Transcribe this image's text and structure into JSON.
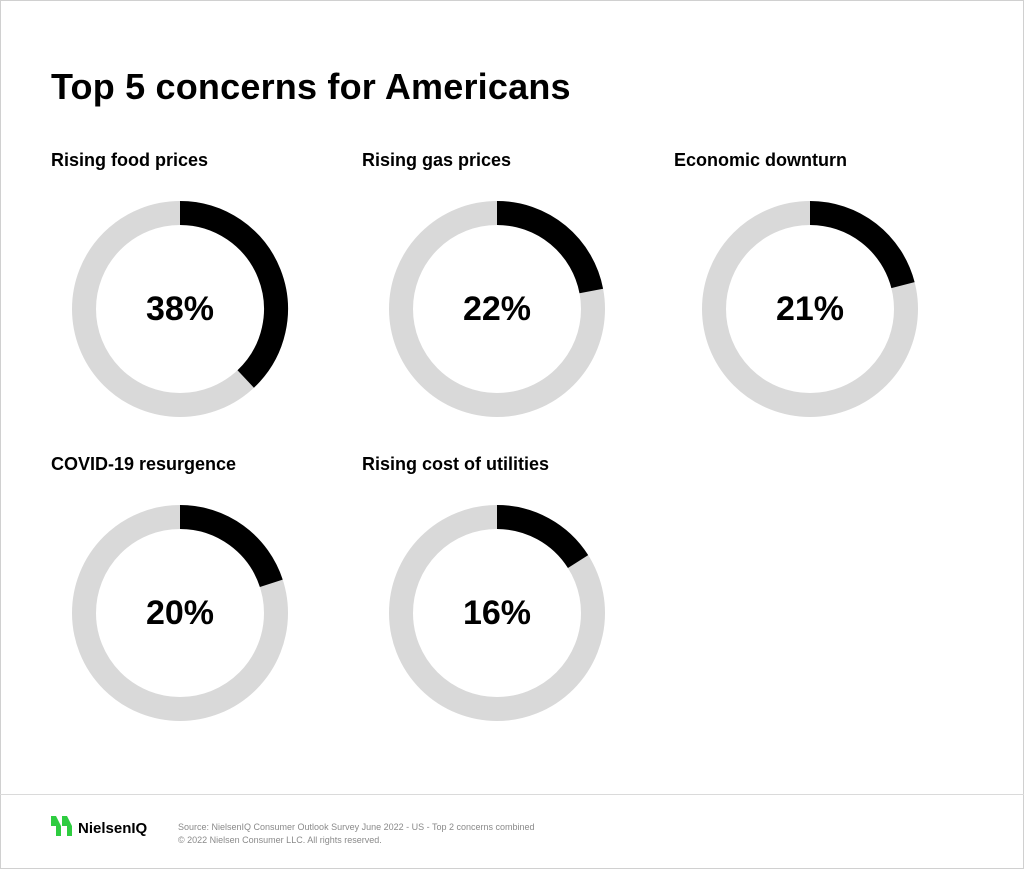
{
  "title": "Top 5 concerns for Americans",
  "chart_data": [
    {
      "type": "pie",
      "title": "Rising food prices",
      "values": [
        38
      ],
      "label": "38%",
      "max": 100
    },
    {
      "type": "pie",
      "title": "Rising gas prices",
      "values": [
        22
      ],
      "label": "22%",
      "max": 100
    },
    {
      "type": "pie",
      "title": "Economic downturn",
      "values": [
        21
      ],
      "label": "21%",
      "max": 100
    },
    {
      "type": "pie",
      "title": "COVID-19 resurgence",
      "values": [
        20
      ],
      "label": "20%",
      "max": 100
    },
    {
      "type": "pie",
      "title": "Rising cost of utilities",
      "values": [
        16
      ],
      "label": "16%",
      "max": 100
    }
  ],
  "colors": {
    "filled": "#000000",
    "track": "#d9d9d9",
    "logo_green": "#2ecc40"
  },
  "footer": {
    "brand": "NielsenIQ",
    "logo_icon": "nielseniq-logo-icon",
    "source": "Source: NielsenIQ Consumer Outlook Survey June 2022 - US - Top 2 concerns combined",
    "copyright": "© 2022 Nielsen Consumer LLC. All rights reserved."
  }
}
